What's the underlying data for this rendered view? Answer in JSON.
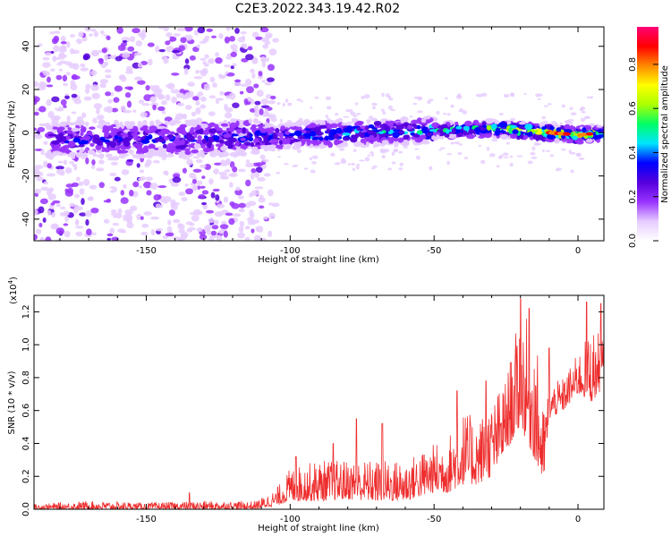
{
  "title": "C2E3.2022.343.19.42.R02",
  "colors": {
    "axis": "#000000",
    "snr_line": "#ee2d2d",
    "background": "#ffffff"
  },
  "chart_data": [
    {
      "type": "heatmap",
      "title": "C2E3.2022.343.19.42.R02",
      "xlabel": "Height of straight line (km)",
      "ylabel": "Frequency (Hz)",
      "xlim": [
        -189,
        9
      ],
      "ylim": [
        -50,
        49
      ],
      "xticks": [
        -150,
        -100,
        -50,
        0
      ],
      "xtick_labels": [
        "-150",
        "-100",
        "-50",
        "0"
      ],
      "yticks": [
        -40,
        -20,
        0,
        20,
        40
      ],
      "ytick_labels": [
        "-40",
        "-20",
        "0",
        "20",
        "40"
      ],
      "colorbar": {
        "label": "Normalized spectral amplitude",
        "range": [
          0,
          0.97
        ],
        "ticks": [
          0.0,
          0.2,
          0.4,
          0.6,
          0.8
        ],
        "tick_labels": [
          "0.0",
          "0.2",
          "0.4",
          "0.6",
          "0.8"
        ],
        "colormap": [
          "#ffffff",
          "#e6ccff",
          "#9933ff",
          "#5500dd",
          "#0000ff",
          "#00e5ff",
          "#00ff66",
          "#aaff00",
          "#ffff00",
          "#ff8800",
          "#ff0000",
          "#ff0077"
        ]
      },
      "ridge": {
        "description_points_x": [
          -185,
          -150,
          -110,
          -80,
          -50,
          -30,
          -10,
          0,
          9
        ],
        "center_frequency_y": [
          -3,
          -3,
          -2,
          0,
          1,
          2,
          0,
          -1,
          0
        ],
        "peak_amplitude": [
          0.35,
          0.35,
          0.4,
          0.45,
          0.5,
          0.6,
          0.85,
          0.9,
          0.6
        ]
      }
    },
    {
      "type": "line",
      "xlabel": "Height of straight line (km)",
      "ylabel": "SNR (10 * v/v)",
      "y_scale_label": "(x10",
      "y_scale_exponent": "4",
      "y_scale_suffix": ")",
      "xlim": [
        -189,
        9
      ],
      "ylim": [
        0,
        1.3
      ],
      "xticks": [
        -150,
        -100,
        -50,
        0
      ],
      "xtick_labels": [
        "-150",
        "-100",
        "-50",
        "0"
      ],
      "yticks": [
        0.0,
        0.2,
        0.4,
        0.6,
        0.8,
        1.0,
        1.2
      ],
      "ytick_labels": [
        "0.0",
        "0.2",
        "0.4",
        "0.6",
        "0.8",
        "1.0",
        "1.2"
      ],
      "series": [
        {
          "color": "#ee2d2d",
          "envelope_x": [
            -189,
            -170,
            -150,
            -130,
            -112,
            -105,
            -100,
            -90,
            -80,
            -70,
            -60,
            -50,
            -45,
            -40,
            -35,
            -30,
            -25,
            -20,
            -15,
            -12,
            -10,
            -5,
            0,
            5,
            9
          ],
          "envelope_y": [
            0.03,
            0.05,
            0.04,
            0.05,
            0.05,
            0.12,
            0.25,
            0.3,
            0.3,
            0.3,
            0.3,
            0.4,
            0.45,
            0.6,
            0.55,
            0.65,
            0.8,
            1.2,
            1.1,
            0.6,
            0.75,
            0.8,
            0.95,
            1.1,
            1.05
          ],
          "baseline_y": [
            0.0,
            0.0,
            0.0,
            0.0,
            0.0,
            0.02,
            0.05,
            0.05,
            0.06,
            0.05,
            0.05,
            0.1,
            0.1,
            0.15,
            0.15,
            0.2,
            0.35,
            0.5,
            0.3,
            0.15,
            0.55,
            0.6,
            0.7,
            0.65,
            0.75
          ],
          "spikes": [
            {
              "x": -98,
              "y": 0.32
            },
            {
              "x": -68,
              "y": 0.52
            },
            {
              "x": -85,
              "y": 0.4
            },
            {
              "x": -42,
              "y": 0.72
            },
            {
              "x": -32,
              "y": 0.78
            },
            {
              "x": -20,
              "y": 1.28
            },
            {
              "x": -17,
              "y": 1.22
            },
            {
              "x": -10,
              "y": 0.98
            },
            {
              "x": 3,
              "y": 1.26
            },
            {
              "x": 8,
              "y": 1.25
            },
            {
              "x": -135,
              "y": 0.1
            },
            {
              "x": -77,
              "y": 0.55
            }
          ]
        }
      ]
    }
  ]
}
